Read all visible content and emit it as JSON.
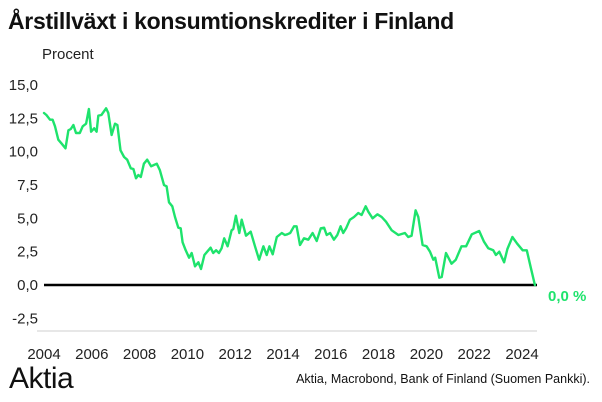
{
  "chart_data": {
    "type": "line",
    "title": "Årstillväxt i konsumtionskrediter i Finland",
    "ylabel": "Procent",
    "xlabel": "",
    "ylim": [
      -2.5,
      15.0
    ],
    "xlim": [
      2004,
      2024.6
    ],
    "yticks": [
      "15,0",
      "12,5",
      "10,0",
      "7,5",
      "5,0",
      "2,5",
      "0,0",
      "-2,5"
    ],
    "ytick_values": [
      15,
      12.5,
      10,
      7.5,
      5,
      2.5,
      0,
      -2.5
    ],
    "xticks": [
      "2004",
      "2006",
      "2008",
      "2010",
      "2012",
      "2014",
      "2016",
      "2018",
      "2020",
      "2022",
      "2024"
    ],
    "xtick_values": [
      2004,
      2006,
      2008,
      2010,
      2012,
      2014,
      2016,
      2018,
      2020,
      2022,
      2024
    ],
    "grid": false,
    "line_color": "#1ee36c",
    "end_label": "0,0 %",
    "series": [
      {
        "x": [
          2004.0,
          2004.1,
          2004.25,
          2004.36,
          2004.46,
          2004.6,
          2004.74,
          2004.9,
          2005.02,
          2005.12,
          2005.23,
          2005.34,
          2005.5,
          2005.62,
          2005.76,
          2005.88,
          2005.97,
          2006.1,
          2006.2,
          2006.27,
          2006.4,
          2006.6,
          2006.69,
          2006.83,
          2006.97,
          2007.07,
          2007.2,
          2007.35,
          2007.48,
          2007.63,
          2007.74,
          2007.85,
          2007.95,
          2008.05,
          2008.18,
          2008.32,
          2008.48,
          2008.6,
          2008.72,
          2008.85,
          2009.02,
          2009.13,
          2009.23,
          2009.37,
          2009.48,
          2009.62,
          2009.72,
          2009.8,
          2009.93,
          2010.07,
          2010.18,
          2010.32,
          2010.46,
          2010.57,
          2010.71,
          2010.83,
          2010.97,
          2011.08,
          2011.2,
          2011.32,
          2011.43,
          2011.54,
          2011.68,
          2011.85,
          2011.92,
          2012.03,
          2012.17,
          2012.27,
          2012.45,
          2012.65,
          2012.83,
          2013.0,
          2013.18,
          2013.32,
          2013.43,
          2013.57,
          2013.74,
          2013.95,
          2014.08,
          2014.18,
          2014.3,
          2014.46,
          2014.57,
          2014.71,
          2014.88,
          2015.06,
          2015.24,
          2015.41,
          2015.58,
          2015.72,
          2015.83,
          2015.97,
          2016.13,
          2016.27,
          2016.41,
          2016.52,
          2016.64,
          2016.8,
          2016.97,
          2017.15,
          2017.29,
          2017.46,
          2017.57,
          2017.75,
          2017.95,
          2018.13,
          2018.31,
          2018.55,
          2018.83,
          2019.1,
          2019.24,
          2019.38,
          2019.55,
          2019.66,
          2019.84,
          2020.01,
          2020.15,
          2020.29,
          2020.37,
          2020.54,
          2020.64,
          2020.82,
          2021.05,
          2021.23,
          2021.47,
          2021.66,
          2021.9,
          2022.21,
          2022.41,
          2022.59,
          2022.8,
          2022.91,
          2023.05,
          2023.25,
          2023.39,
          2023.6,
          2023.8,
          2024.03,
          2024.2,
          2024.37,
          2024.54
        ],
        "y": [
          12.9,
          12.75,
          12.4,
          12.4,
          11.9,
          10.9,
          10.6,
          10.25,
          11.6,
          11.7,
          12.0,
          11.4,
          11.4,
          11.9,
          12.1,
          13.2,
          11.5,
          11.75,
          11.5,
          12.7,
          12.75,
          13.25,
          12.9,
          11.25,
          12.1,
          12.0,
          10.1,
          9.6,
          9.4,
          8.75,
          8.7,
          8.0,
          8.25,
          8.1,
          9.1,
          9.4,
          8.9,
          9.0,
          9.1,
          8.6,
          7.5,
          7.4,
          6.2,
          5.9,
          5.1,
          4.3,
          4.25,
          3.2,
          2.6,
          2.05,
          2.4,
          1.4,
          1.7,
          1.2,
          2.25,
          2.5,
          2.8,
          2.4,
          2.6,
          2.4,
          2.75,
          3.5,
          2.9,
          4.1,
          4.2,
          5.2,
          3.9,
          4.9,
          3.7,
          4.0,
          2.9,
          1.9,
          2.9,
          2.25,
          2.9,
          2.3,
          3.6,
          3.9,
          3.75,
          3.8,
          3.9,
          4.4,
          4.4,
          3.0,
          3.5,
          3.4,
          3.9,
          3.3,
          4.25,
          4.3,
          3.75,
          3.9,
          3.4,
          3.75,
          4.4,
          3.9,
          4.25,
          4.9,
          5.1,
          5.4,
          5.25,
          5.9,
          5.5,
          5.0,
          5.3,
          5.1,
          4.75,
          4.1,
          3.75,
          3.9,
          3.6,
          3.7,
          5.6,
          5.1,
          3.0,
          2.9,
          2.5,
          1.9,
          2.05,
          0.55,
          0.6,
          2.4,
          1.6,
          1.9,
          2.9,
          2.9,
          3.8,
          4.05,
          3.25,
          2.75,
          2.6,
          2.25,
          2.5,
          1.7,
          2.7,
          3.6,
          3.1,
          2.6,
          2.6,
          1.3,
          0.0
        ]
      }
    ]
  },
  "footer": {
    "logo": "Aktia",
    "source": "Aktia, Macrobond, Bank of Finland (Suomen Pankki)."
  }
}
